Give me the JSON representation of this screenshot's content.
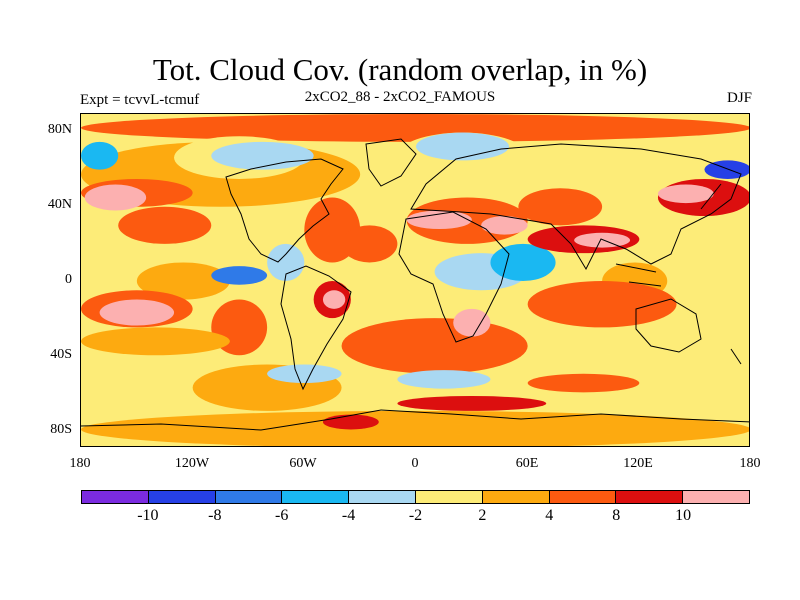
{
  "title": "Tot. Cloud Cov. (random overlap, in %)",
  "left_label": "Expt = tcvvL-tcmuf",
  "center_label": "2xCO2_88 - 2xCO2_FAMOUS",
  "right_label": "DJF",
  "y_ticks": [
    "80N",
    "40N",
    "0",
    "40S",
    "80S"
  ],
  "x_ticks": [
    "180",
    "120W",
    "60W",
    "0",
    "60E",
    "120E",
    "180"
  ],
  "colorbar": {
    "colors": [
      "#7b2be0",
      "#2640e6",
      "#2f7ae8",
      "#1ab8f2",
      "#a9d8f2",
      "#fdec78",
      "#fdaa10",
      "#fc5a10",
      "#dc0f0f",
      "#fcb0b0"
    ],
    "labels": [
      "-10",
      "-8",
      "-6",
      "-4",
      "-2",
      "2",
      "4",
      "8",
      "10"
    ]
  },
  "chart_data": {
    "type": "heatmap",
    "title": "Tot. Cloud Cov. (random overlap, in %)",
    "subtitle": "2xCO2_88 - 2xCO2_FAMOUS",
    "season": "DJF",
    "x_range": [
      -180,
      180
    ],
    "y_range": [
      -90,
      90
    ],
    "x_tick_labels": [
      "180",
      "120W",
      "60W",
      "0",
      "60E",
      "120E",
      "180"
    ],
    "y_tick_labels": [
      "80N",
      "40N",
      "0",
      "40S",
      "80S"
    ],
    "contour_levels": [
      -10,
      -8,
      -6,
      -4,
      -2,
      2,
      4,
      8,
      10
    ],
    "background_value": 1,
    "regions": [
      {
        "lon": [
          -180,
          180
        ],
        "lat": [
          75,
          90
        ],
        "value": 5
      },
      {
        "lon": [
          -180,
          -30
        ],
        "lat": [
          40,
          75
        ],
        "value": 3
      },
      {
        "lon": [
          -130,
          -60
        ],
        "lat": [
          55,
          78
        ],
        "value": 1
      },
      {
        "lon": [
          -110,
          -55
        ],
        "lat": [
          60,
          75
        ],
        "value": -3
      },
      {
        "lon": [
          -10,
          60
        ],
        "lat": [
          55,
          80
        ],
        "value": 1
      },
      {
        "lon": [
          0,
          50
        ],
        "lat": [
          65,
          80
        ],
        "value": -3
      },
      {
        "lon": [
          -60,
          -30
        ],
        "lat": [
          10,
          45
        ],
        "value": 6
      },
      {
        "lon": [
          -40,
          -10
        ],
        "lat": [
          10,
          30
        ],
        "value": 5
      },
      {
        "lon": [
          -180,
          -120
        ],
        "lat": [
          40,
          55
        ],
        "value": 7
      },
      {
        "lon": [
          -178,
          -145
        ],
        "lat": [
          38,
          52
        ],
        "value": 11
      },
      {
        "lon": [
          -180,
          -160
        ],
        "lat": [
          60,
          75
        ],
        "value": -6
      },
      {
        "lon": [
          -160,
          -110
        ],
        "lat": [
          20,
          40
        ],
        "value": 5
      },
      {
        "lon": [
          -150,
          -100
        ],
        "lat": [
          -10,
          10
        ],
        "value": 3
      },
      {
        "lon": [
          -180,
          -120
        ],
        "lat": [
          -25,
          -5
        ],
        "value": 5
      },
      {
        "lon": [
          -170,
          -130
        ],
        "lat": [
          -24,
          -10
        ],
        "value": 11
      },
      {
        "lon": [
          -110,
          -80
        ],
        "lat": [
          -40,
          -10
        ],
        "value": 6
      },
      {
        "lon": [
          -110,
          -80
        ],
        "lat": [
          -2,
          8
        ],
        "value": -7
      },
      {
        "lon": [
          -80,
          -60
        ],
        "lat": [
          0,
          20
        ],
        "value": -3
      },
      {
        "lon": [
          -55,
          -35
        ],
        "lat": [
          -20,
          0
        ],
        "value": 9
      },
      {
        "lon": [
          -50,
          -38
        ],
        "lat": [
          -15,
          -5
        ],
        "value": 11
      },
      {
        "lon": [
          -40,
          60
        ],
        "lat": [
          -50,
          -20
        ],
        "value": 6
      },
      {
        "lon": [
          20,
          40
        ],
        "lat": [
          -30,
          -15
        ],
        "value": 11
      },
      {
        "lon": [
          -5,
          60
        ],
        "lat": [
          20,
          45
        ],
        "value": 7
      },
      {
        "lon": [
          -5,
          30
        ],
        "lat": [
          28,
          38
        ],
        "value": 11
      },
      {
        "lon": [
          35,
          60
        ],
        "lat": [
          25,
          35
        ],
        "value": 11
      },
      {
        "lon": [
          10,
          60
        ],
        "lat": [
          -5,
          15
        ],
        "value": -3
      },
      {
        "lon": [
          40,
          75
        ],
        "lat": [
          0,
          20
        ],
        "value": -6
      },
      {
        "lon": [
          55,
          100
        ],
        "lat": [
          30,
          50
        ],
        "value": 5
      },
      {
        "lon": [
          60,
          120
        ],
        "lat": [
          15,
          30
        ],
        "value": 8
      },
      {
        "lon": [
          85,
          115
        ],
        "lat": [
          18,
          26
        ],
        "value": 11
      },
      {
        "lon": [
          100,
          135
        ],
        "lat": [
          -10,
          10
        ],
        "value": 3
      },
      {
        "lon": [
          130,
          180
        ],
        "lat": [
          35,
          55
        ],
        "value": 8
      },
      {
        "lon": [
          130,
          160
        ],
        "lat": [
          42,
          52
        ],
        "value": 11
      },
      {
        "lon": [
          155,
          180
        ],
        "lat": [
          55,
          65
        ],
        "value": -9
      },
      {
        "lon": [
          60,
          140
        ],
        "lat": [
          -25,
          0
        ],
        "value": 5
      },
      {
        "lon": [
          -180,
          -100
        ],
        "lat": [
          -40,
          -25
        ],
        "value": 3
      },
      {
        "lon": [
          -120,
          -40
        ],
        "lat": [
          -70,
          -45
        ],
        "value": 3
      },
      {
        "lon": [
          -80,
          -40
        ],
        "lat": [
          -55,
          -45
        ],
        "value": -3
      },
      {
        "lon": [
          -10,
          40
        ],
        "lat": [
          -58,
          -48
        ],
        "value": -3
      },
      {
        "lon": [
          60,
          120
        ],
        "lat": [
          -60,
          -50
        ],
        "value": 4
      },
      {
        "lon": [
          -10,
          70
        ],
        "lat": [
          -70,
          -62
        ],
        "value": 9
      },
      {
        "lon": [
          -180,
          180
        ],
        "lat": [
          -90,
          -70
        ],
        "value": 3
      },
      {
        "lon": [
          -50,
          -20
        ],
        "lat": [
          -80,
          -72
        ],
        "value": 8
      }
    ]
  }
}
